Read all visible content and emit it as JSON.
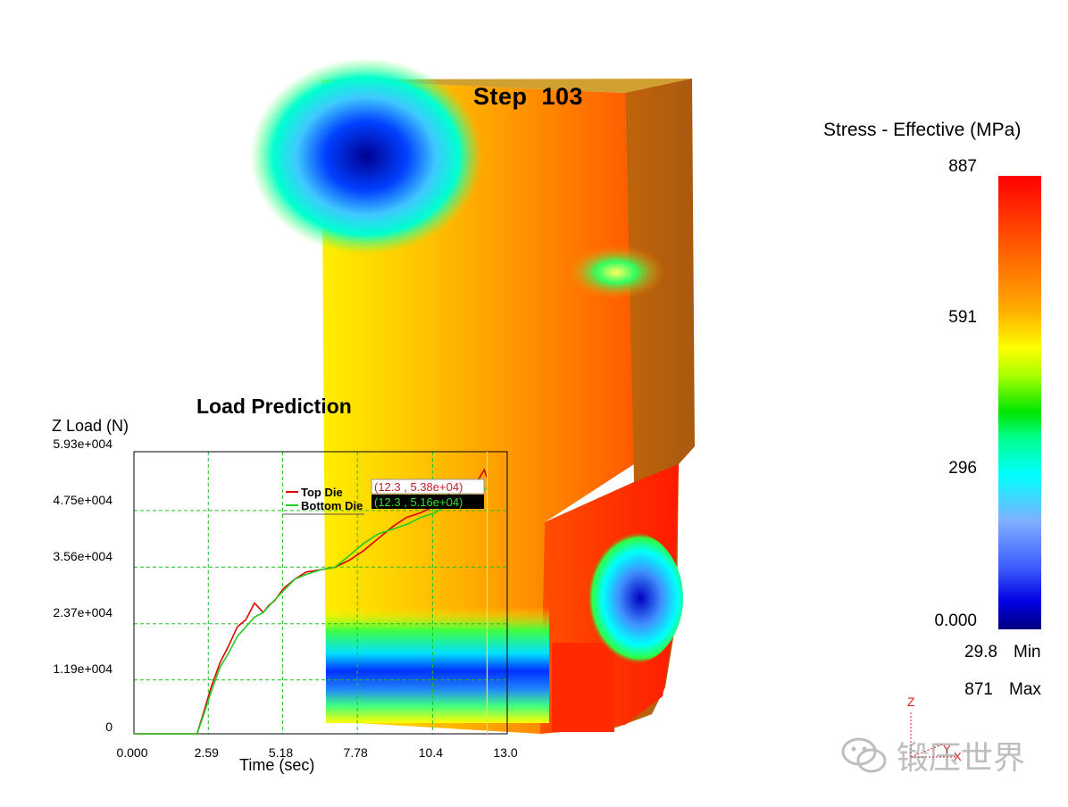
{
  "viewport": {
    "step_label": "Step  103"
  },
  "stress_legend": {
    "title": "Stress - Effective (MPa)",
    "ticks": [
      "887",
      "591",
      "296",
      "0.000"
    ],
    "min_value": "29.8",
    "min_label": "Min",
    "max_value": "871",
    "max_label": "Max",
    "colors": [
      "#ff0000",
      "#ffff00",
      "#00ff00",
      "#00ffff",
      "#0000ff",
      "#000080"
    ]
  },
  "axis_triad": {
    "z": "Z",
    "x": "X",
    "y": "Y"
  },
  "load_chart": {
    "title": "Load Prediction",
    "ylabel": "Z Load (N)",
    "xlabel": "Time (sec)",
    "y_ticks": [
      "5.93e+004",
      "4.75e+004",
      "3.56e+004",
      "2.37e+004",
      "1.19e+004",
      "0"
    ],
    "x_ticks": [
      "0.000",
      "2.59",
      "5.18",
      "7.78",
      "10.4",
      "13.0"
    ],
    "legend": [
      {
        "name": "Top Die",
        "color": "#e00000",
        "readout": "(12.3 , 5.38e+04)"
      },
      {
        "name": "Bottom Die",
        "color": "#22cc22",
        "readout": "(12.3 , 5.16e+04)"
      }
    ]
  },
  "chart_data": {
    "type": "line",
    "title": "Load Prediction",
    "xlabel": "Time (sec)",
    "ylabel": "Z Load (N)",
    "xlim": [
      0,
      13.0
    ],
    "ylim": [
      0,
      59300
    ],
    "grid": true,
    "legend_position": "top-center",
    "series": [
      {
        "name": "Top Die",
        "color": "#e00000",
        "x": [
          0,
          1.0,
          2.2,
          2.4,
          2.7,
          3.0,
          3.3,
          3.6,
          3.9,
          4.2,
          4.5,
          4.7,
          4.9,
          5.2,
          5.6,
          6.0,
          6.5,
          7.0,
          7.5,
          8.0,
          8.5,
          9.0,
          9.5,
          10.0,
          10.5,
          11.0,
          11.5,
          11.8,
          12.0,
          12.2,
          12.3
        ],
        "y": [
          0,
          0,
          0,
          4000,
          10000,
          15000,
          18500,
          22500,
          24000,
          27500,
          25500,
          27000,
          28000,
          30500,
          32500,
          34000,
          34500,
          35000,
          36500,
          38500,
          41000,
          43500,
          45500,
          46500,
          48000,
          50500,
          51000,
          52000,
          53500,
          55500,
          53800
        ]
      },
      {
        "name": "Bottom Die",
        "color": "#22cc22",
        "x": [
          0,
          1.0,
          2.2,
          2.4,
          2.7,
          3.0,
          3.3,
          3.6,
          3.9,
          4.2,
          4.5,
          4.8,
          5.2,
          5.6,
          6.0,
          6.5,
          7.0,
          7.5,
          8.0,
          8.5,
          9.0,
          9.5,
          10.0,
          10.5,
          11.0,
          11.5,
          12.0,
          12.3
        ],
        "y": [
          0,
          0,
          0,
          3500,
          9000,
          14000,
          17000,
          20500,
          22500,
          24500,
          25500,
          27500,
          30000,
          32500,
          33500,
          34500,
          35000,
          37500,
          40000,
          42000,
          43000,
          44000,
          45500,
          46500,
          48500,
          50000,
          51000,
          51600
        ]
      }
    ]
  }
}
